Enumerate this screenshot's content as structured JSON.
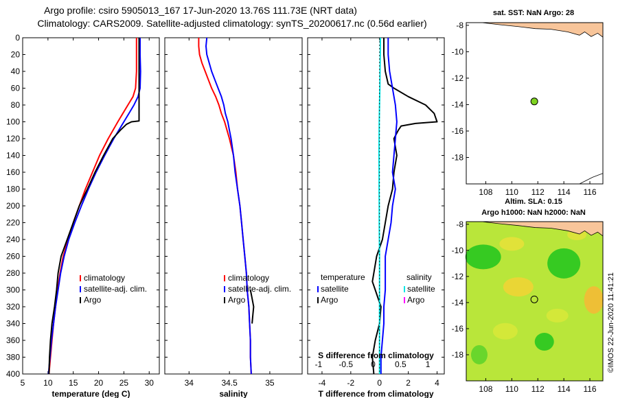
{
  "title": {
    "line1": "Argo profile: csiro 5905013_167 17-Jun-2020 13.76S 111.73E (NRT data)",
    "line2": "Climatology: CARS2009. Satellite-adjusted climatology: synTS_20200617.nc (0.56d earlier)"
  },
  "colors": {
    "climatology": "#ff0000",
    "satellite": "#0000ff",
    "argo": "#000000",
    "sal_diff": "#00e5e5",
    "sal_argo_legend": "#ff00ff",
    "land": "#f8c59a",
    "float_marker": "#7ed321"
  },
  "sst_map": {
    "title": "sat. SST: NaN Argo: 28",
    "xticks": [
      "108",
      "110",
      "112",
      "114",
      "116"
    ],
    "yticks": [
      "-8",
      "-10",
      "-12",
      "-14",
      "-16",
      "-18"
    ],
    "xlim": [
      106.5,
      117
    ],
    "ylim": [
      -20,
      -7.8
    ],
    "float_lon": 111.73,
    "float_lat": -13.76
  },
  "sla_map": {
    "title1": "Altim. SLA: 0.15",
    "title2": "Argo h1000: NaN h2000: NaN",
    "xticks": [
      "108",
      "110",
      "112",
      "114",
      "116"
    ],
    "yticks": [
      "-8",
      "-10",
      "-12",
      "-14",
      "-16",
      "-18"
    ],
    "xlim": [
      106.5,
      117
    ],
    "ylim": [
      -20,
      -7.8
    ],
    "float_lon": 111.73,
    "float_lat": -13.76
  },
  "watermark": "©IMOS 22-Jun-2020 11:41:21",
  "chart_data": [
    {
      "type": "line",
      "name": "temperature",
      "xlabel": "temperature (deg C)",
      "ylabel": "",
      "xlim": [
        5,
        32
      ],
      "ylim": [
        0,
        400
      ],
      "xticks": [
        5,
        10,
        15,
        20,
        25,
        30
      ],
      "yticks": [
        0,
        20,
        40,
        60,
        80,
        100,
        120,
        140,
        160,
        180,
        200,
        220,
        240,
        260,
        280,
        300,
        320,
        340,
        360,
        380,
        400
      ],
      "legend": [
        "climatology",
        "satellite-adj. clim.",
        "Argo"
      ],
      "series": [
        {
          "name": "climatology",
          "color": "#ff0000",
          "depth": [
            0,
            20,
            40,
            60,
            70,
            80,
            90,
            100,
            120,
            140,
            160,
            180,
            200,
            220,
            240,
            260,
            280,
            300,
            320,
            340,
            360,
            380,
            400
          ],
          "values": [
            27.5,
            27.5,
            27.5,
            27.3,
            26.8,
            25.8,
            24.8,
            23.8,
            21.9,
            20.2,
            18.8,
            17.4,
            16.2,
            15.0,
            14.0,
            13.0,
            12.4,
            11.9,
            11.5,
            11.1,
            10.8,
            10.5,
            10.2
          ]
        },
        {
          "name": "satellite-adj. clim.",
          "color": "#0000ff",
          "depth": [
            0,
            20,
            40,
            60,
            70,
            80,
            90,
            100,
            110,
            120,
            140,
            160,
            180,
            200,
            220,
            240,
            260,
            280,
            300,
            320,
            340,
            360,
            380,
            400
          ],
          "values": [
            28.2,
            28.2,
            28.3,
            28.2,
            27.8,
            27.0,
            26.0,
            25.0,
            24.0,
            23.0,
            21.2,
            19.5,
            18.0,
            16.6,
            15.3,
            14.1,
            13.2,
            12.5,
            12.0,
            11.5,
            11.1,
            10.7,
            10.4,
            10.1
          ]
        },
        {
          "name": "Argo",
          "color": "#000000",
          "depth": [
            0,
            10,
            20,
            40,
            60,
            80,
            99,
            100,
            103,
            110,
            120,
            140,
            160,
            180,
            200,
            220,
            240,
            260,
            280,
            300,
            320,
            340,
            360,
            380,
            400
          ],
          "values": [
            28.0,
            28.0,
            28.0,
            28.0,
            28.0,
            28.0,
            28.0,
            26.5,
            25.5,
            24.3,
            22.8,
            21.0,
            19.3,
            17.8,
            16.2,
            15.0,
            13.8,
            12.6,
            12.0,
            11.7,
            11.3,
            10.8,
            10.5,
            10.3,
            10.2
          ]
        }
      ]
    },
    {
      "type": "line",
      "name": "salinity",
      "xlabel": "salinity",
      "xlim": [
        33.7,
        35.4
      ],
      "ylim": [
        0,
        400
      ],
      "xticks": [
        34,
        34.5,
        35
      ],
      "legend": [
        "climatology",
        "satellite-adj. clim.",
        "Argo"
      ],
      "series": [
        {
          "name": "climatology",
          "color": "#ff0000",
          "depth": [
            0,
            10,
            20,
            30,
            40,
            50,
            60,
            70,
            80,
            90,
            100,
            110,
            120,
            140,
            160,
            180,
            200,
            220,
            240,
            260,
            280,
            300,
            320,
            340,
            360,
            380,
            400
          ],
          "values": [
            34.12,
            34.12,
            34.13,
            34.16,
            34.2,
            34.24,
            34.28,
            34.33,
            34.37,
            34.4,
            34.44,
            34.47,
            34.5,
            34.55,
            34.58,
            34.6,
            34.63,
            34.65,
            34.67,
            34.69,
            34.71,
            34.72,
            34.74,
            34.75,
            34.76,
            34.76,
            34.77
          ]
        },
        {
          "name": "satellite-adj. clim.",
          "color": "#0000ff",
          "depth": [
            0,
            10,
            20,
            30,
            40,
            50,
            60,
            70,
            80,
            90,
            100,
            110,
            120,
            140,
            160,
            180,
            200,
            220,
            240,
            260,
            280,
            300,
            320,
            340,
            360,
            380,
            400
          ],
          "values": [
            34.22,
            34.21,
            34.22,
            34.25,
            34.28,
            34.32,
            34.36,
            34.4,
            34.43,
            34.45,
            34.48,
            34.5,
            34.52,
            34.55,
            34.57,
            34.6,
            34.63,
            34.65,
            34.67,
            34.69,
            34.71,
            34.72,
            34.74,
            34.75,
            34.76,
            34.76,
            34.77
          ]
        },
        {
          "name": "Argo",
          "color": "#000000",
          "depth": [
            300,
            310,
            320,
            330,
            340
          ],
          "values": [
            34.76,
            34.78,
            34.8,
            34.79,
            34.78
          ]
        }
      ]
    },
    {
      "type": "line",
      "name": "difference from climatology",
      "xlabel": "T difference from climatology",
      "xlabel_top": "S difference from climatology",
      "xlim": [
        -5,
        4.5
      ],
      "ylim": [
        0,
        400
      ],
      "xticks": [
        -4,
        -2,
        0,
        2,
        4
      ],
      "xticks_top": [
        -1,
        -0.5,
        0,
        0.5,
        1
      ],
      "legend_temperature": [
        "satellite",
        "Argo"
      ],
      "legend_salinity": [
        "satellite",
        "Argo"
      ],
      "legend_temperature_title": "temperature",
      "legend_salinity_title": "salinity",
      "series": [
        {
          "name": "temperature Argo",
          "color": "#000000",
          "depth": [
            0,
            20,
            40,
            55,
            60,
            70,
            80,
            90,
            100,
            102,
            105,
            110,
            120,
            140,
            160,
            180,
            200,
            220,
            240,
            260,
            280,
            290,
            300,
            320,
            340,
            360,
            380,
            400
          ],
          "values": [
            0.3,
            0.3,
            0.4,
            0.6,
            1.0,
            2.0,
            3.2,
            3.8,
            4.0,
            2.5,
            1.5,
            1.3,
            1.0,
            1.2,
            1.0,
            0.9,
            0.6,
            0.4,
            0.2,
            -0.2,
            -0.4,
            -0.5,
            -0.3,
            0.1,
            0.0,
            -0.3,
            -0.5,
            -0.4
          ]
        },
        {
          "name": "temperature satellite",
          "color": "#0000ff",
          "depth": [
            0,
            20,
            40,
            60,
            80,
            100,
            120,
            140,
            160,
            180,
            200,
            220,
            240,
            260,
            280,
            300,
            320,
            340,
            360,
            380,
            400
          ],
          "values": [
            0.6,
            0.6,
            0.7,
            0.9,
            1.1,
            1.2,
            1.1,
            1.0,
            0.9,
            1.1,
            0.9,
            0.8,
            0.6,
            0.4,
            0.4,
            0.4,
            0.3,
            0.3,
            0.2,
            0.1,
            0.1
          ]
        },
        {
          "name": "salinity satellite",
          "color": "#00e5e5",
          "depth": [
            0,
            20,
            40,
            60,
            80,
            100,
            120,
            140,
            160,
            180,
            200,
            220,
            240,
            260,
            280,
            300,
            320,
            340,
            360,
            380,
            400
          ],
          "values": [
            0.06,
            0.05,
            0.03,
            0.02,
            0.0,
            -0.02,
            -0.03,
            -0.04,
            -0.03,
            -0.03,
            -0.02,
            -0.02,
            -0.01,
            0.0,
            0.0,
            0.0,
            0.0,
            0.0,
            0.0,
            0.0,
            0.0
          ]
        }
      ]
    }
  ]
}
